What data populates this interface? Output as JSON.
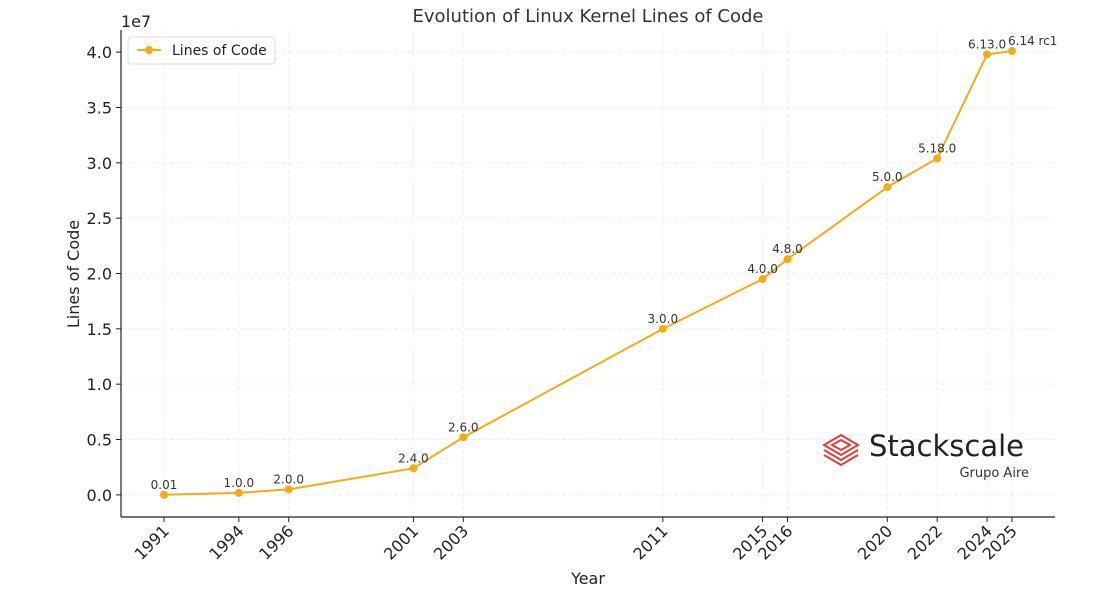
{
  "chart_data": {
    "type": "line",
    "title": "Evolution of Linux Kernel Lines of Code",
    "xlabel": "Year",
    "ylabel": "Lines of Code",
    "y_scale_label": "1e7",
    "ylim": [
      -0.2,
      4.2
    ],
    "grid": true,
    "legend_position": "top-left",
    "x": [
      1991,
      1994,
      1996,
      2001,
      2003,
      2011,
      2015,
      2016,
      2020,
      2022,
      2024,
      2025
    ],
    "x_tick_labels": [
      "1991",
      "1994",
      "1996",
      "2001",
      "2003",
      "2011",
      "2015",
      "2016",
      "2020",
      "2022",
      "2024",
      "2025"
    ],
    "y_ticks": [
      0.0,
      0.5,
      1.0,
      1.5,
      2.0,
      2.5,
      3.0,
      3.5,
      4.0
    ],
    "y_tick_labels": [
      "0.0",
      "0.5",
      "1.0",
      "1.5",
      "2.0",
      "2.5",
      "3.0",
      "3.5",
      "4.0"
    ],
    "series": [
      {
        "name": "Lines of Code",
        "color": "#F5AB16",
        "values": [
          0.001,
          0.018,
          0.05,
          0.24,
          0.52,
          1.5,
          1.95,
          2.13,
          2.78,
          3.04,
          3.98,
          4.01
        ],
        "point_labels": [
          "0.01",
          "1.0.0",
          "2.0.0",
          "2.4.0",
          "2.6.0",
          "3.0.0",
          "4.0.0",
          "4.8.0",
          "5.0.0",
          "5.18.0",
          "6.13.0",
          "6.14 rc1"
        ]
      }
    ]
  },
  "watermark": {
    "brand": "Stackscale",
    "sub": "Grupo Aire",
    "color": "#E03C3C"
  }
}
